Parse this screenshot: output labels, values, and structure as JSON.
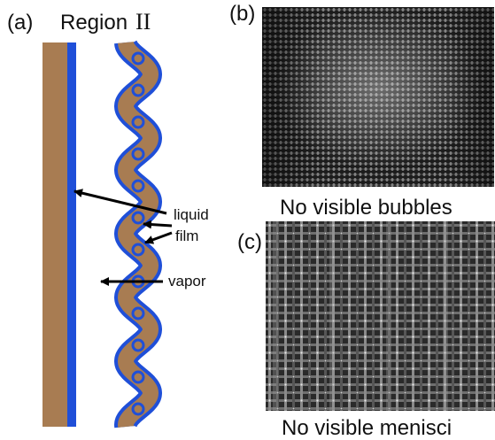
{
  "panel_a": {
    "label": "(a)",
    "title_word": "Region",
    "title_numeral": "II",
    "annotations": {
      "liquid": "liquid",
      "film": "film",
      "vapor": "vapor"
    },
    "colors": {
      "wall": "#a87c52",
      "film": "#1f4fd8"
    }
  },
  "panel_b": {
    "label": "(b)",
    "caption": "No visible bubbles"
  },
  "panel_c": {
    "label": "(c)",
    "caption": "No visible menisci"
  }
}
